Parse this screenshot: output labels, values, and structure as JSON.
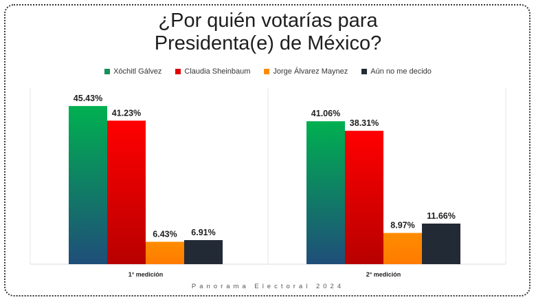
{
  "title_line1": "¿Por quién votarías para",
  "title_line2": "Presidenta(e) de México?",
  "footer": "Panorama Electoral 2024",
  "colors": {
    "xochitl": [
      "#00b050",
      "#1f4e79"
    ],
    "claudia": [
      "#ff0000",
      "#b80000"
    ],
    "jorge": [
      "#ff8c00",
      "#ff7b00"
    ],
    "aun": [
      "#222a35",
      "#222a35"
    ]
  },
  "chart_data": {
    "type": "bar",
    "title": "¿Por quién votarías para Presidenta(e) de México?",
    "categories": [
      "1° medición",
      "2° medición"
    ],
    "series": [
      {
        "name": "Xóchitl Gálvez",
        "values": [
          45.43,
          41.06
        ],
        "labels": [
          "45.43%",
          "41.06%"
        ],
        "color_key": "xochitl"
      },
      {
        "name": "Claudia Sheinbaum",
        "values": [
          41.23,
          38.31
        ],
        "labels": [
          "41.23%",
          "38.31%"
        ],
        "color_key": "claudia"
      },
      {
        "name": "Jorge Álvarez Maynez",
        "values": [
          6.43,
          8.97
        ],
        "labels": [
          "6.43%",
          "8.97%"
        ],
        "color_key": "jorge"
      },
      {
        "name": "Aún no me decido",
        "values": [
          6.91,
          11.66
        ],
        "labels": [
          "6.91%",
          "11.66%"
        ],
        "color_key": "aun"
      }
    ],
    "ylim": [
      0,
      50
    ],
    "legend_position": "top-center",
    "grid": false
  }
}
